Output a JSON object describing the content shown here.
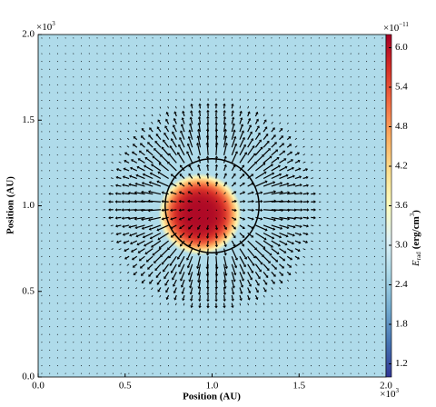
{
  "chart_data": {
    "type": "field",
    "x_label": "Position (AU)",
    "y_label": "Position (AU)",
    "x_multiplier": {
      "base": "×10",
      "exponent": "3"
    },
    "y_multiplier": {
      "base": "×10",
      "exponent": "3"
    },
    "xlim": [
      0,
      2.0
    ],
    "ylim": [
      0,
      2.0
    ],
    "xticks": [
      {
        "value": 0,
        "label": "0.0"
      },
      0.5,
      {
        "value": 1,
        "label": "1.0"
      },
      1.5,
      {
        "value": 2,
        "label": "2.0"
      }
    ],
    "yticks": [
      {
        "value": 0,
        "label": "0.0"
      },
      0.5,
      {
        "value": 1,
        "label": "1.0"
      },
      1.5,
      {
        "value": 2,
        "label": "2.0"
      }
    ],
    "colorbar": {
      "label": {
        "symbol": "E",
        "subscript": "rad",
        "unit": "(erg/cm",
        "unit_exponent": "3",
        "unit_close": ")"
      },
      "multiplier": {
        "base": "×10",
        "exponent": "−11"
      },
      "lim": [
        1.0,
        6.2
      ],
      "ticks": [
        1.2,
        1.8,
        2.4,
        {
          "value": 3,
          "label": "3.0"
        },
        3.6,
        4.2,
        4.8,
        5.4,
        {
          "value": 6,
          "label": "6.0"
        }
      ],
      "colormap": [
        "#313695",
        "#4575b4",
        "#74add1",
        "#abd9e9",
        "#e0f3f8",
        "#ffffbf",
        "#fee090",
        "#fdae61",
        "#f46d43",
        "#d73027",
        "#a50026"
      ]
    },
    "field": {
      "background": 2.6,
      "peak": 6.1,
      "center": [
        0.93,
        0.95
      ],
      "radius": 0.24
    },
    "front": {
      "center": [
        1.0,
        1.0
      ],
      "radius": 0.27
    }
  }
}
